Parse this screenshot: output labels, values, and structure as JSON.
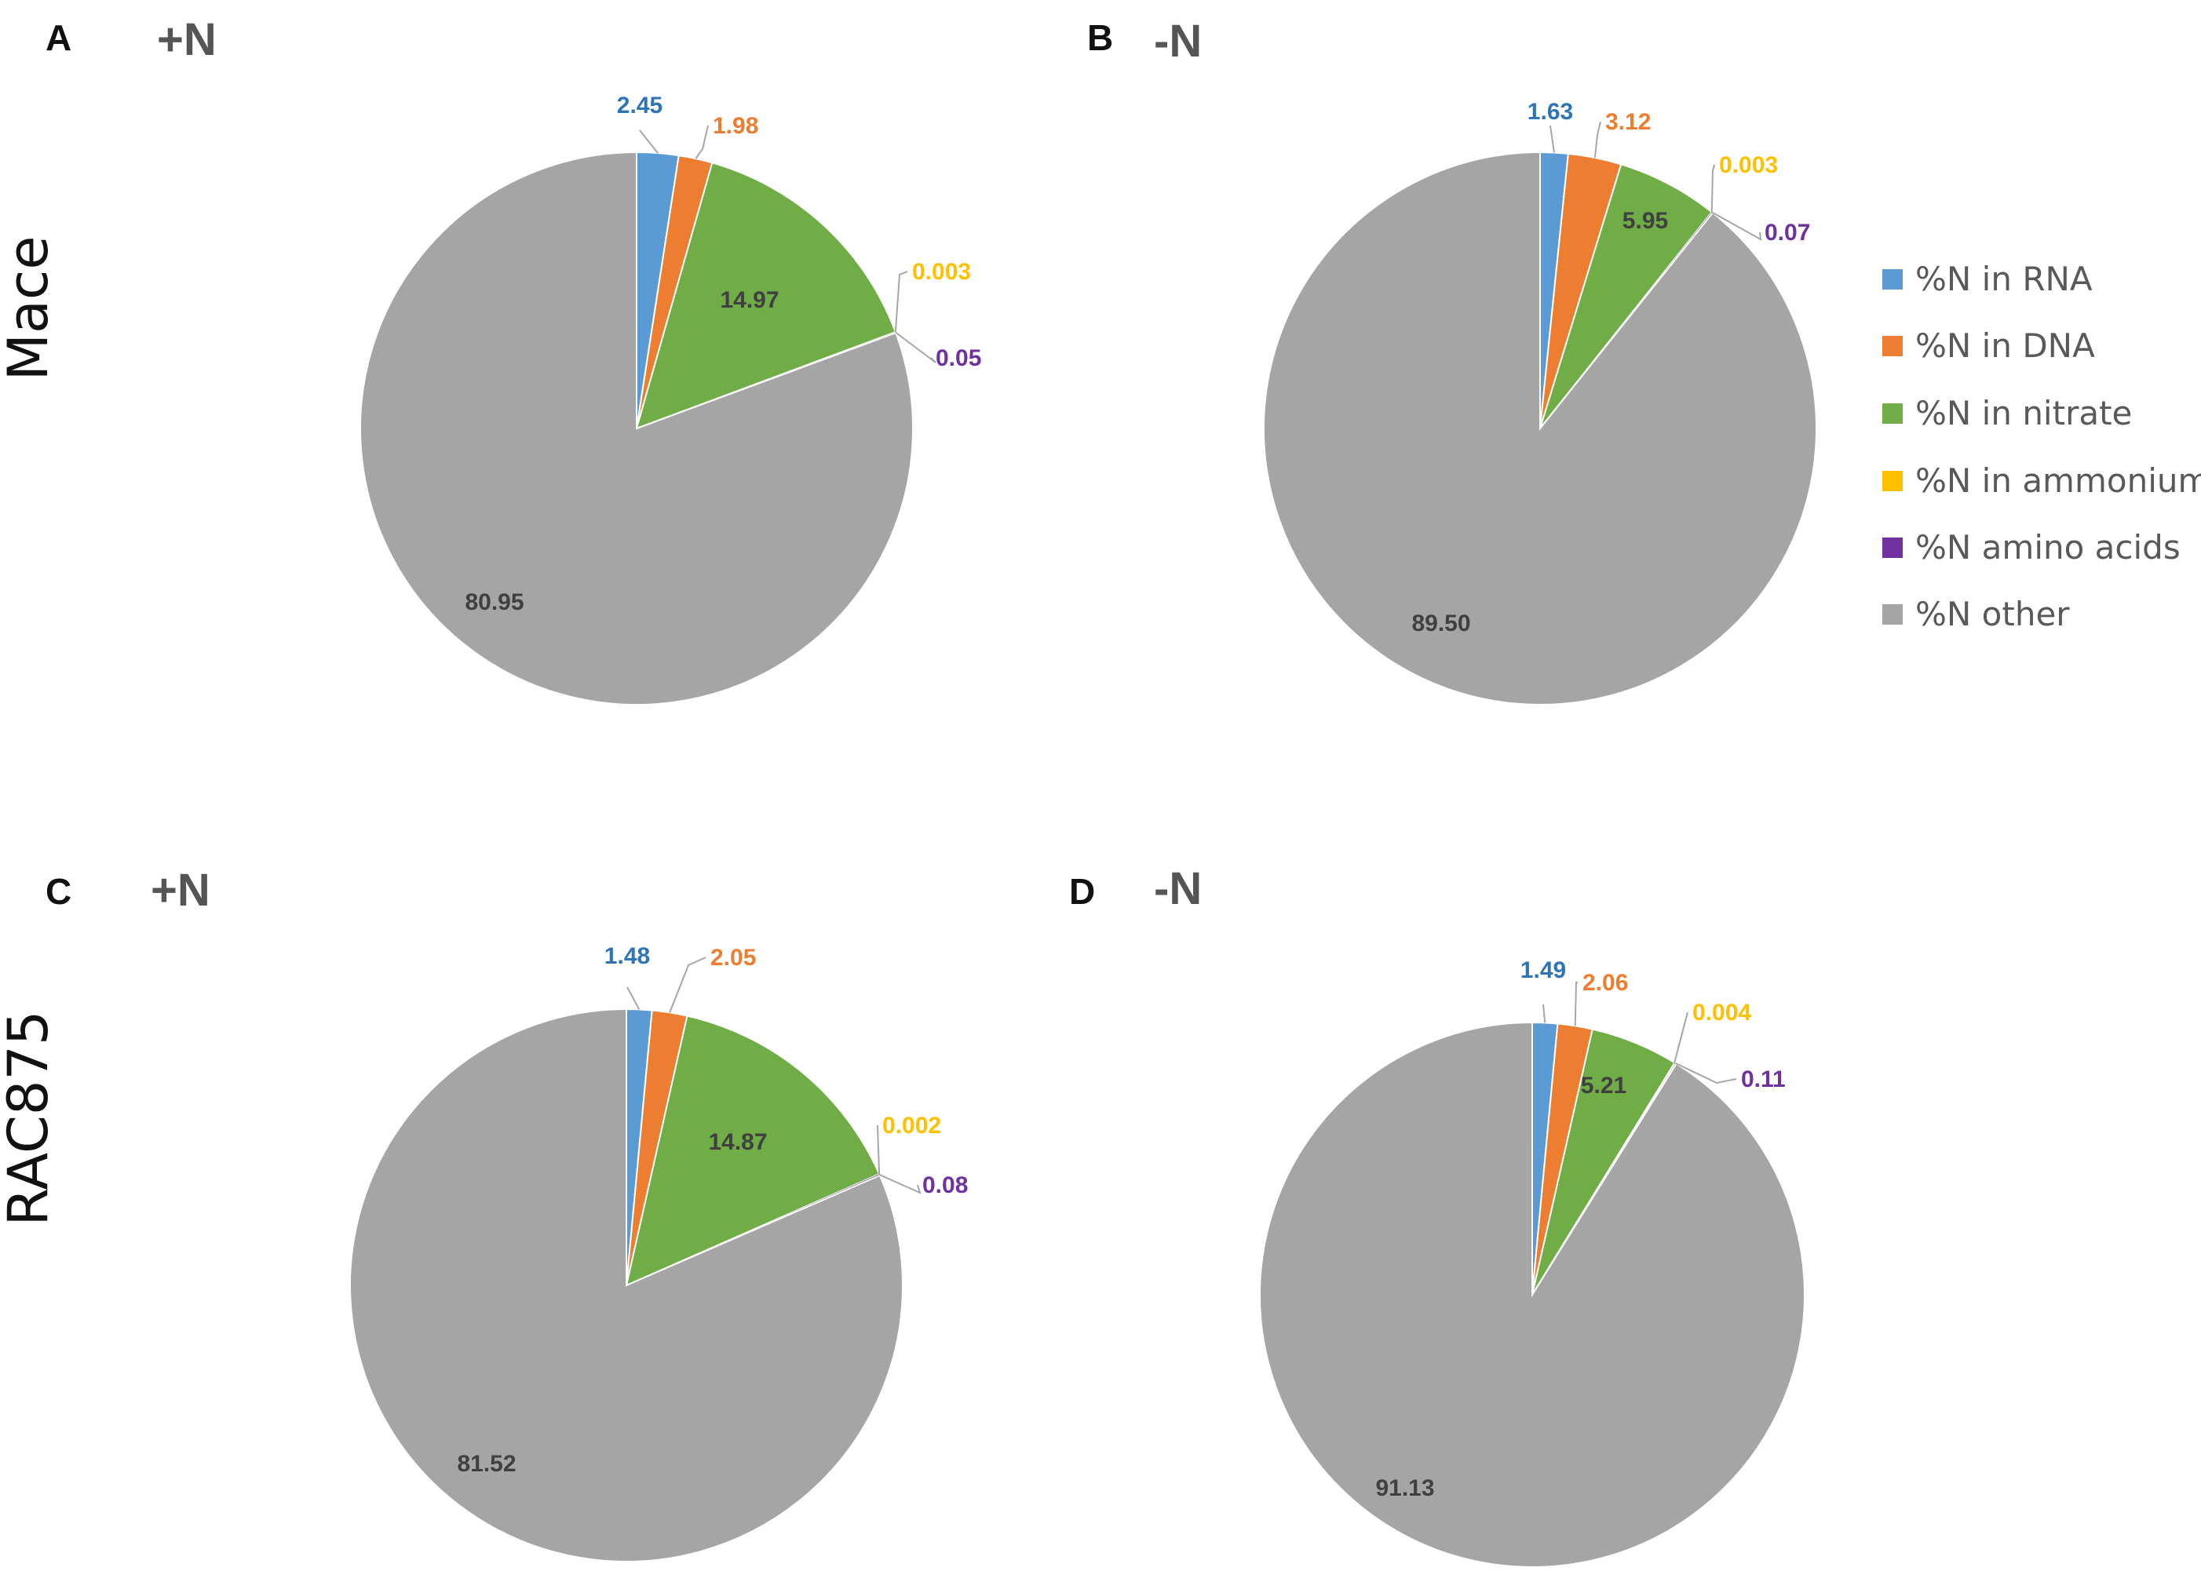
{
  "row_labels": [
    "Mace",
    "RAC875"
  ],
  "legend": [
    {
      "label": "%N in RNA",
      "color": "#5B9BD5"
    },
    {
      "label": "%N in DNA",
      "color": "#ED7D31"
    },
    {
      "label": "%N in nitrate",
      "color": "#70AD47"
    },
    {
      "label": "%N in ammonium",
      "color": "#FFC000"
    },
    {
      "label": "%N amino acids",
      "color": "#7030A0"
    },
    {
      "label": "%N other",
      "color": "#A5A5A5"
    }
  ],
  "label_colors": [
    "#2E75B6",
    "#ED7D31",
    "#70AD47",
    "#FFC000",
    "#7030A0",
    "#404040"
  ],
  "chart_data": [
    {
      "type": "pie",
      "panel": "A",
      "title": "+N",
      "categories": [
        "%N in RNA",
        "%N in DNA",
        "%N in nitrate",
        "%N in ammonium",
        "%N amino acids",
        "%N other"
      ],
      "values": [
        2.45,
        1.98,
        14.97,
        0.003,
        0.05,
        80.95
      ],
      "labels": [
        "2.45",
        "1.98",
        "14.97",
        "0.003",
        "0.05",
        "80.95"
      ]
    },
    {
      "type": "pie",
      "panel": "B",
      "title": "-N",
      "categories": [
        "%N in RNA",
        "%N in DNA",
        "%N in nitrate",
        "%N in ammonium",
        "%N amino acids",
        "%N other"
      ],
      "values": [
        1.63,
        3.12,
        5.95,
        0.003,
        0.07,
        89.5
      ],
      "labels": [
        "1.63",
        "3.12",
        "5.95",
        "0.003",
        "0.07",
        "89.50"
      ]
    },
    {
      "type": "pie",
      "panel": "C",
      "title": "+N",
      "categories": [
        "%N in RNA",
        "%N in DNA",
        "%N in nitrate",
        "%N in ammonium",
        "%N amino acids",
        "%N other"
      ],
      "values": [
        1.48,
        2.05,
        14.87,
        0.002,
        0.08,
        81.52
      ],
      "labels": [
        "1.48",
        "2.05",
        "14.87",
        "0.002",
        "0.08",
        "81.52"
      ]
    },
    {
      "type": "pie",
      "panel": "D",
      "title": "-N",
      "categories": [
        "%N in RNA",
        "%N in DNA",
        "%N in nitrate",
        "%N in ammonium",
        "%N amino acids",
        "%N other"
      ],
      "values": [
        1.49,
        2.06,
        5.21,
        0.004,
        0.11,
        91.13
      ],
      "labels": [
        "1.49",
        "2.06",
        "5.21",
        "0.004",
        "0.11",
        "91.13"
      ]
    }
  ]
}
